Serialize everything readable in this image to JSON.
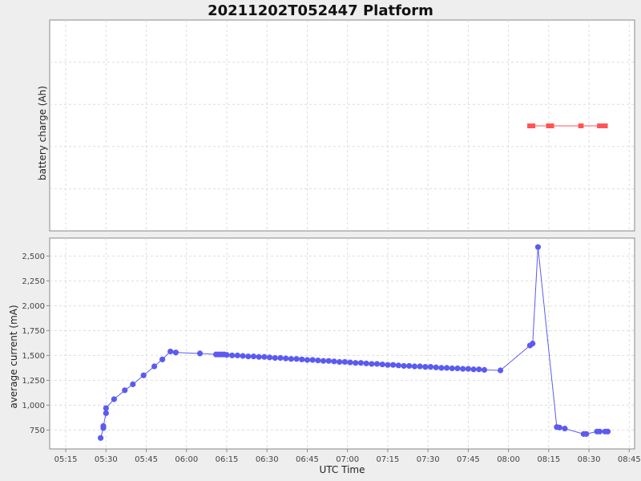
{
  "chart_data": {
    "type": "line",
    "title": "20211202T052447 Platform",
    "xlabel": "UTC Time",
    "x_ticks": [
      "05:15",
      "05:30",
      "05:45",
      "06:00",
      "06:15",
      "06:30",
      "06:45",
      "07:00",
      "07:15",
      "07:30",
      "07:45",
      "08:00",
      "08:15",
      "08:30",
      "08:45"
    ],
    "x_range": [
      "05:09",
      "08:47"
    ],
    "grid": true,
    "legend": "none",
    "panels": [
      {
        "ylabel": "battery charge (Ah)",
        "y_ticks": [],
        "color": "#ff5555",
        "segments": [
          [
            "08:07",
            "08:10"
          ],
          [
            "08:14",
            "08:17"
          ],
          [
            "08:26",
            "08:28"
          ],
          [
            "08:33",
            "08:37"
          ]
        ],
        "connector": [
          "08:07",
          "08:37"
        ]
      },
      {
        "ylabel": "average current (mA)",
        "ylim": [
          560,
          2680
        ],
        "y_ticks": [
          750,
          1000,
          1250,
          1500,
          1750,
          2000,
          2250,
          2500
        ],
        "y_tick_labels": [
          "750",
          "1,000",
          "1,250",
          "1,500",
          "1,750",
          "2,000",
          "2,250",
          "2,500"
        ],
        "color": "#5b5bf0",
        "points": [
          [
            "05:28",
            670
          ],
          [
            "05:29",
            770
          ],
          [
            "05:29",
            790
          ],
          [
            "05:30",
            920
          ],
          [
            "05:30",
            970
          ],
          [
            "05:33",
            1060
          ],
          [
            "05:37",
            1150
          ],
          [
            "05:40",
            1210
          ],
          [
            "05:44",
            1300
          ],
          [
            "05:48",
            1390
          ],
          [
            "05:51",
            1460
          ],
          [
            "05:54",
            1540
          ],
          [
            "05:56",
            1530
          ],
          [
            "06:05",
            1520
          ],
          [
            "06:11",
            1510
          ],
          [
            "06:12",
            1510
          ],
          [
            "06:13",
            1510
          ],
          [
            "06:14",
            1510
          ],
          [
            "06:15",
            1505
          ],
          [
            "06:17",
            1500
          ],
          [
            "06:19",
            1500
          ],
          [
            "06:21",
            1495
          ],
          [
            "06:23",
            1490
          ],
          [
            "06:25",
            1490
          ],
          [
            "06:27",
            1485
          ],
          [
            "06:29",
            1485
          ],
          [
            "06:31",
            1480
          ],
          [
            "06:33",
            1475
          ],
          [
            "06:35",
            1475
          ],
          [
            "06:37",
            1470
          ],
          [
            "06:39",
            1465
          ],
          [
            "06:41",
            1465
          ],
          [
            "06:43",
            1460
          ],
          [
            "06:45",
            1455
          ],
          [
            "06:47",
            1455
          ],
          [
            "06:49",
            1450
          ],
          [
            "06:51",
            1445
          ],
          [
            "06:53",
            1445
          ],
          [
            "06:55",
            1440
          ],
          [
            "06:57",
            1435
          ],
          [
            "06:59",
            1435
          ],
          [
            "07:01",
            1430
          ],
          [
            "07:03",
            1425
          ],
          [
            "07:05",
            1425
          ],
          [
            "07:07",
            1420
          ],
          [
            "07:09",
            1415
          ],
          [
            "07:11",
            1415
          ],
          [
            "07:13",
            1410
          ],
          [
            "07:15",
            1405
          ],
          [
            "07:17",
            1405
          ],
          [
            "07:19",
            1400
          ],
          [
            "07:21",
            1395
          ],
          [
            "07:23",
            1395
          ],
          [
            "07:25",
            1390
          ],
          [
            "07:27",
            1390
          ],
          [
            "07:29",
            1385
          ],
          [
            "07:31",
            1385
          ],
          [
            "07:33",
            1380
          ],
          [
            "07:35",
            1375
          ],
          [
            "07:37",
            1375
          ],
          [
            "07:39",
            1370
          ],
          [
            "07:41",
            1370
          ],
          [
            "07:43",
            1365
          ],
          [
            "07:45",
            1365
          ],
          [
            "07:47",
            1360
          ],
          [
            "07:49",
            1360
          ],
          [
            "07:51",
            1355
          ],
          [
            "07:57",
            1350
          ],
          [
            "08:08",
            1600
          ],
          [
            "08:09",
            1620
          ],
          [
            "08:11",
            2590
          ],
          [
            "08:18",
            780
          ],
          [
            "08:19",
            775
          ],
          [
            "08:21",
            765
          ],
          [
            "08:28",
            710
          ],
          [
            "08:29",
            710
          ],
          [
            "08:33",
            735
          ],
          [
            "08:34",
            735
          ],
          [
            "08:36",
            735
          ],
          [
            "08:37",
            735
          ]
        ]
      }
    ]
  }
}
